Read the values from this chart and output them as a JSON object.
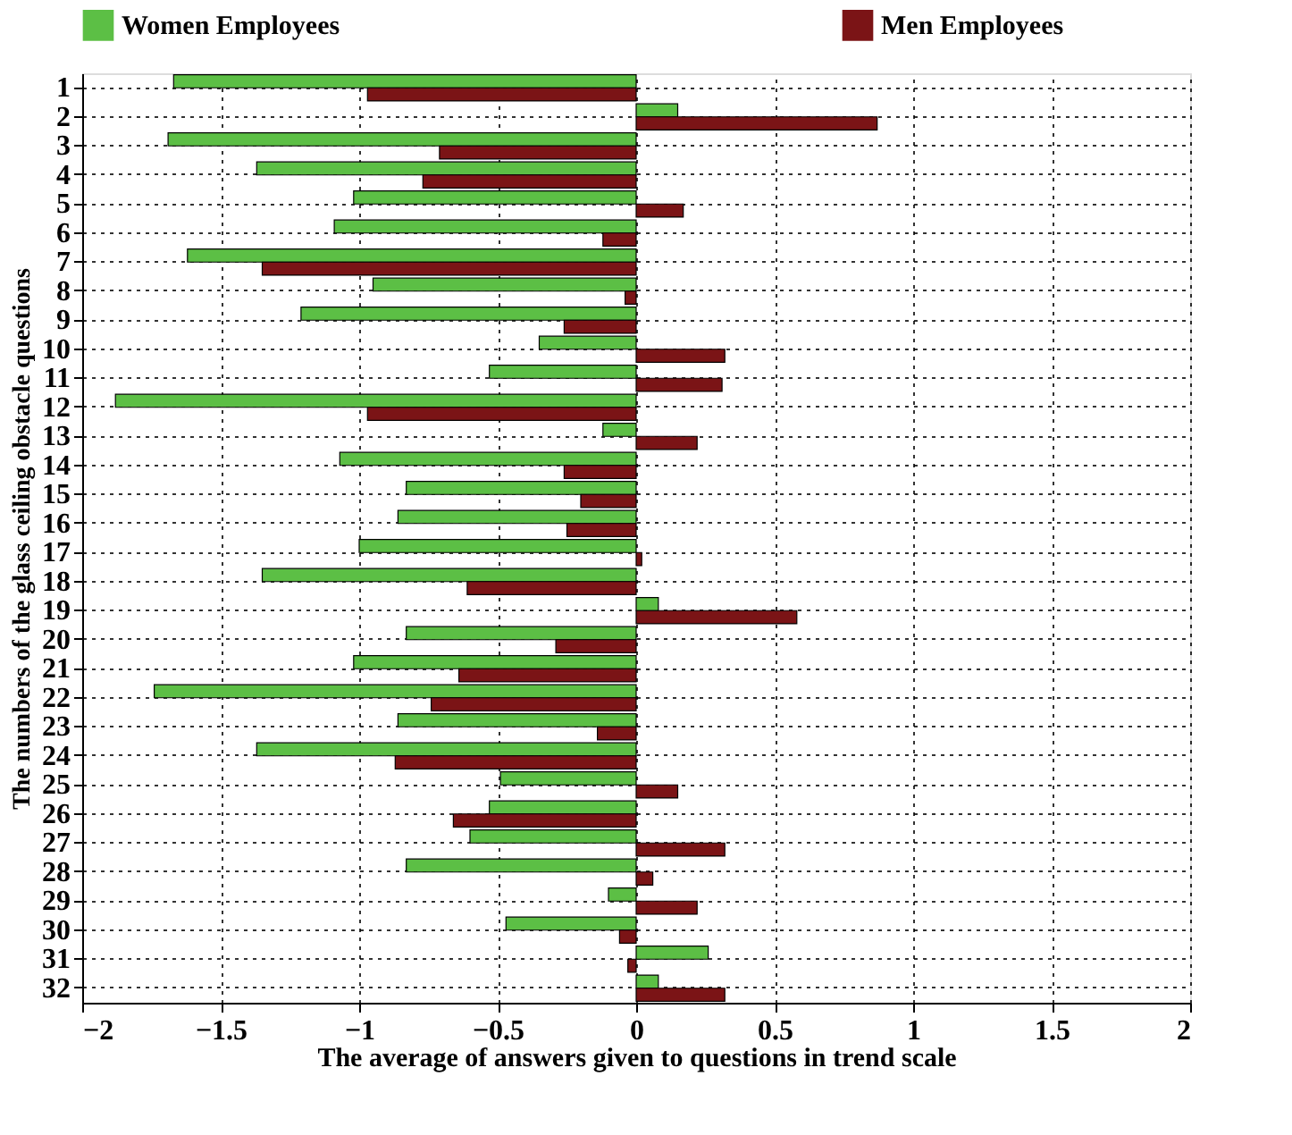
{
  "chart_data": {
    "type": "bar",
    "orientation": "horizontal",
    "xlabel": "The average of answers given to questions in trend scale",
    "ylabel": "The numbers of the  glass ceiling obstacle questions",
    "categories": [
      "1",
      "2",
      "3",
      "4",
      "5",
      "6",
      "7",
      "8",
      "9",
      "10",
      "11",
      "12",
      "13",
      "14",
      "15",
      "16",
      "17",
      "18",
      "19",
      "20",
      "21",
      "22",
      "23",
      "24",
      "25",
      "26",
      "27",
      "28",
      "29",
      "30",
      "31",
      "32"
    ],
    "series": [
      {
        "name": "Women Employees",
        "color": "#5cbf45",
        "values": [
          -1.67,
          0.15,
          -1.69,
          -1.37,
          -1.02,
          -1.09,
          -1.62,
          -0.95,
          -1.21,
          -0.35,
          -0.53,
          -1.88,
          -0.12,
          -1.07,
          -0.83,
          -0.86,
          -1.0,
          -1.35,
          0.08,
          -0.83,
          -1.02,
          -1.74,
          -0.86,
          -1.37,
          -0.49,
          -0.53,
          -0.6,
          -0.83,
          -0.1,
          -0.47,
          0.26,
          0.08
        ]
      },
      {
        "name": "Men Employees",
        "color": "#7b1416",
        "values": [
          -0.97,
          0.87,
          -0.71,
          -0.77,
          0.17,
          -0.12,
          -1.35,
          -0.04,
          -0.26,
          0.32,
          0.31,
          -0.97,
          0.22,
          -0.26,
          -0.2,
          -0.25,
          0.02,
          -0.61,
          0.58,
          -0.29,
          -0.64,
          -0.74,
          -0.14,
          -0.87,
          0.15,
          -0.66,
          0.32,
          0.06,
          0.22,
          -0.06,
          -0.03,
          0.32
        ]
      }
    ],
    "xlim": [
      -2,
      2
    ],
    "xticks": [
      -2,
      -1.5,
      -1,
      -0.5,
      0,
      0.5,
      1,
      1.5,
      2
    ],
    "grid": true,
    "legend": "top"
  }
}
